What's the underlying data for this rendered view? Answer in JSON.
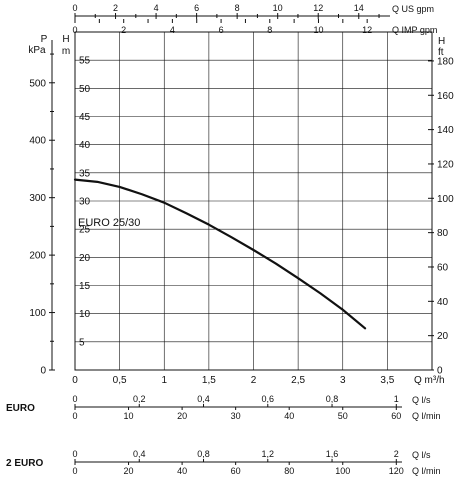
{
  "chart_data": {
    "type": "line",
    "series_label": "EURO  25/30",
    "curve": {
      "x": [
        0,
        0.25,
        0.5,
        0.75,
        1.0,
        1.25,
        1.5,
        1.75,
        2.0,
        2.25,
        2.5,
        2.75,
        3.0,
        3.25
      ],
      "y": [
        33.8,
        33.4,
        32.5,
        31.2,
        29.7,
        27.8,
        25.8,
        23.6,
        21.3,
        18.9,
        16.3,
        13.6,
        10.7,
        7.4
      ]
    },
    "x_axis": {
      "unit": "Q m³/h",
      "range": [
        0,
        4
      ],
      "ticks": [
        "0",
        "0,5",
        "1",
        "1,5",
        "2",
        "2,5",
        "3",
        "3,5"
      ],
      "values": [
        0,
        0.5,
        1,
        1.5,
        2,
        2.5,
        3,
        3.5
      ]
    },
    "y_axis_m": {
      "unit": "m",
      "range": [
        0,
        60
      ],
      "ticks": [
        "0",
        "5",
        "10",
        "15",
        "20",
        "25",
        "30",
        "35",
        "40",
        "45",
        "50",
        "55"
      ],
      "values": [
        0,
        5,
        10,
        15,
        20,
        25,
        30,
        35,
        40,
        45,
        50,
        55
      ]
    },
    "y_axis_kpa": {
      "title_top": "P",
      "unit": "kPa",
      "ticks": [
        "0",
        "100",
        "200",
        "300",
        "400",
        "500"
      ],
      "values": [
        0,
        100,
        200,
        300,
        400,
        500
      ]
    },
    "y_axis_ft": {
      "title_top": "H",
      "unit": "ft",
      "ticks": [
        "0",
        "20",
        "40",
        "60",
        "80",
        "100",
        "120",
        "140",
        "160",
        "180"
      ],
      "values": [
        0,
        20,
        40,
        60,
        80,
        100,
        120,
        140,
        160,
        180
      ]
    },
    "left_title": "H",
    "top_axis_us": {
      "unit": "Q US gpm",
      "ticks": [
        "0",
        "2",
        "4",
        "6",
        "8",
        "10",
        "12",
        "14"
      ],
      "values": [
        0,
        2,
        4,
        6,
        8,
        10,
        12,
        14
      ]
    },
    "top_axis_imp": {
      "unit": "Q IMP gpm",
      "ticks": [
        "0",
        "2",
        "4",
        "6",
        "8",
        "10",
        "12"
      ],
      "values": [
        0,
        2,
        4,
        6,
        8,
        10,
        12
      ]
    },
    "euro_ls": {
      "label": "EURO",
      "unit": "Q l/s",
      "ticks": [
        "0",
        "0,2",
        "0,4",
        "0,6",
        "0,8",
        "1"
      ],
      "values": [
        0,
        0.2,
        0.4,
        0.6,
        0.8,
        1.0
      ]
    },
    "euro_lmin": {
      "unit": "Q l/min",
      "ticks": [
        "0",
        "10",
        "20",
        "30",
        "40",
        "50",
        "60"
      ],
      "values": [
        0,
        10,
        20,
        30,
        40,
        50,
        60
      ]
    },
    "euro2_ls": {
      "label": "2 EURO",
      "unit": "Q l/s",
      "ticks": [
        "0",
        "0,4",
        "0,8",
        "1,2",
        "1,6",
        "2"
      ],
      "values": [
        0,
        0.4,
        0.8,
        1.2,
        1.6,
        2.0
      ]
    },
    "euro2_lmin": {
      "unit": "Q l/min",
      "ticks": [
        "0",
        "20",
        "40",
        "60",
        "80",
        "100",
        "120"
      ],
      "values": [
        0,
        20,
        40,
        60,
        80,
        100,
        120
      ]
    },
    "grid": true
  }
}
